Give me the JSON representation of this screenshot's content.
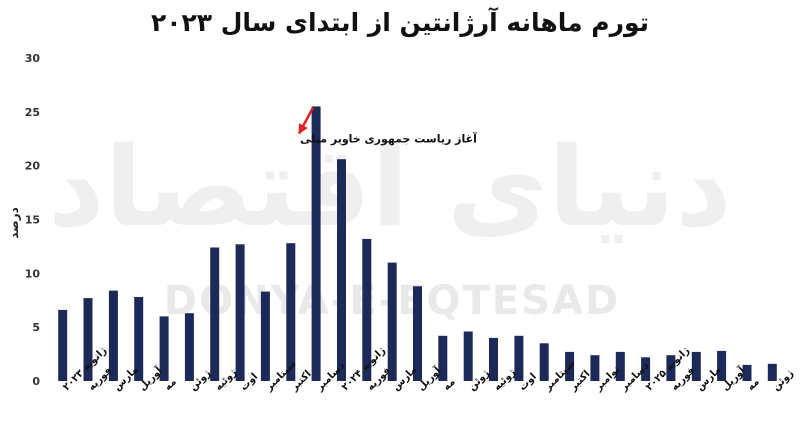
{
  "watermark": {
    "latin": "DONYA-E-EQTESAD",
    "script": "دنیای اقتصاد"
  },
  "chart_data": {
    "type": "bar",
    "title": "تورم ماهانه آرژانتین از ابتدای سال ۲۰۲۳",
    "xlabel": "",
    "ylabel": "درصد",
    "ylim": [
      0,
      30
    ],
    "yticks": [
      0,
      5,
      10,
      15,
      20,
      25,
      30
    ],
    "ytick_labels": [
      "0",
      "5",
      "10",
      "15",
      "20",
      "25",
      "30"
    ],
    "grid": false,
    "legend": "none",
    "bar_color": "#1c2a5a",
    "categories": [
      "ژانویه ۲۰۲۳",
      "فوریه",
      "مارس",
      "آوریل",
      "مه",
      "ژوئن",
      "ژوئیه",
      "اوت",
      "سپتامبر",
      "اکتبر",
      "دسامبر",
      "ژانویه ۲۰۲۴",
      "فوریه",
      "مارس",
      "آوریل",
      "مه",
      "ژوئن",
      "ژوئیه",
      "اوت",
      "سپتامبر",
      "اکتبر",
      "نوامبر",
      "دسامبر",
      "ژانویه ۲۰۲۵",
      "فوریه",
      "مارس",
      "آوریل",
      "مه",
      "ژوئن"
    ],
    "values": [
      6.6,
      7.7,
      8.4,
      7.8,
      6.0,
      6.3,
      12.4,
      12.7,
      8.3,
      12.8,
      25.5,
      20.6,
      13.2,
      11.0,
      8.8,
      4.2,
      4.6,
      4.0,
      4.2,
      3.5,
      2.7,
      2.4,
      2.7,
      2.2,
      2.4,
      2.7,
      2.8,
      1.5,
      1.6
    ],
    "annotation": {
      "text": "آغاز ریاست جمهوری خاویر میلی",
      "category_index": 10,
      "arrow_color": "#e02020"
    }
  }
}
